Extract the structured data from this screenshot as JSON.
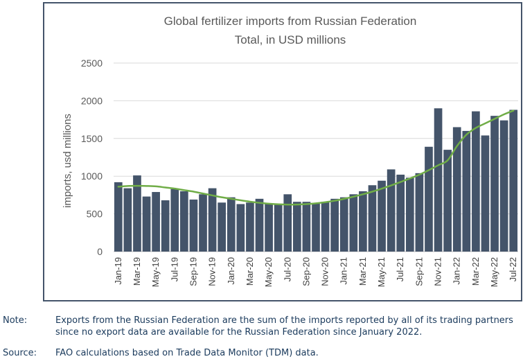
{
  "chart_data": {
    "type": "bar",
    "title": "Global fertilizer imports from Russian Federation",
    "subtitle": "Total, in USD millions",
    "ylabel": "imports, usd millions",
    "xlabel": "",
    "ylim": [
      0,
      2500
    ],
    "yticks": [
      0,
      500,
      1000,
      1500,
      2000,
      2500
    ],
    "grid": "horizontal",
    "colors": {
      "bar": "#44546a",
      "trend": "#70ad47",
      "grid": "#d9d9d9"
    },
    "categories": [
      "Jan-19",
      "Feb-19",
      "Mar-19",
      "Apr-19",
      "May-19",
      "Jun-19",
      "Jul-19",
      "Aug-19",
      "Sep-19",
      "Oct-19",
      "Nov-19",
      "Dec-19",
      "Jan-20",
      "Feb-20",
      "Mar-20",
      "Apr-20",
      "May-20",
      "Jun-20",
      "Jul-20",
      "Aug-20",
      "Sep-20",
      "Oct-20",
      "Nov-20",
      "Dec-20",
      "Jan-21",
      "Feb-21",
      "Mar-21",
      "Apr-21",
      "May-21",
      "Jun-21",
      "Jul-21",
      "Aug-21",
      "Sep-21",
      "Oct-21",
      "Nov-21",
      "Dec-21",
      "Jan-22",
      "Feb-22",
      "Mar-22",
      "Apr-22",
      "May-22",
      "Jun-22",
      "Jul-22"
    ],
    "tick_labels": [
      "Jan-19",
      "Mar-19",
      "May-19",
      "Jul-19",
      "Sep-19",
      "Nov-19",
      "Jan-20",
      "Mar-20",
      "May-20",
      "Jul-20",
      "Sep-20",
      "Nov-20",
      "Jan-21",
      "Mar-21",
      "May-21",
      "Jul-21",
      "Sep-21",
      "Nov-21",
      "Jan-22",
      "Mar-22",
      "May-22",
      "Jul-22"
    ],
    "series": [
      {
        "values": [
          920,
          840,
          1010,
          730,
          790,
          680,
          830,
          800,
          690,
          760,
          840,
          650,
          720,
          630,
          650,
          700,
          640,
          620,
          760,
          660,
          660,
          640,
          660,
          700,
          720,
          760,
          800,
          880,
          940,
          1090,
          1020,
          980,
          1040,
          1390,
          1900,
          1350,
          1650,
          1600,
          1860,
          1540,
          1800,
          1740,
          1880
        ]
      },
      {
        "type": "trendline",
        "values": [
          860,
          870,
          872,
          870,
          865,
          850,
          835,
          815,
          795,
          770,
          745,
          720,
          700,
          680,
          662,
          647,
          635,
          627,
          623,
          624,
          630,
          640,
          655,
          675,
          700,
          728,
          760,
          795,
          835,
          877,
          923,
          970,
          1020,
          1080,
          1145,
          1210,
          1400,
          1550,
          1640,
          1700,
          1760,
          1820,
          1870
        ]
      }
    ]
  },
  "notes": {
    "note_label": "Note:",
    "note_text": "Exports from the Russian Federation are the sum of the imports reported by all of its trading partners since no export data are available for the Russian Federation since January 2022.",
    "source_label": "Source:",
    "source_text": "FAO calculations based on Trade Data Monitor (TDM) data."
  }
}
